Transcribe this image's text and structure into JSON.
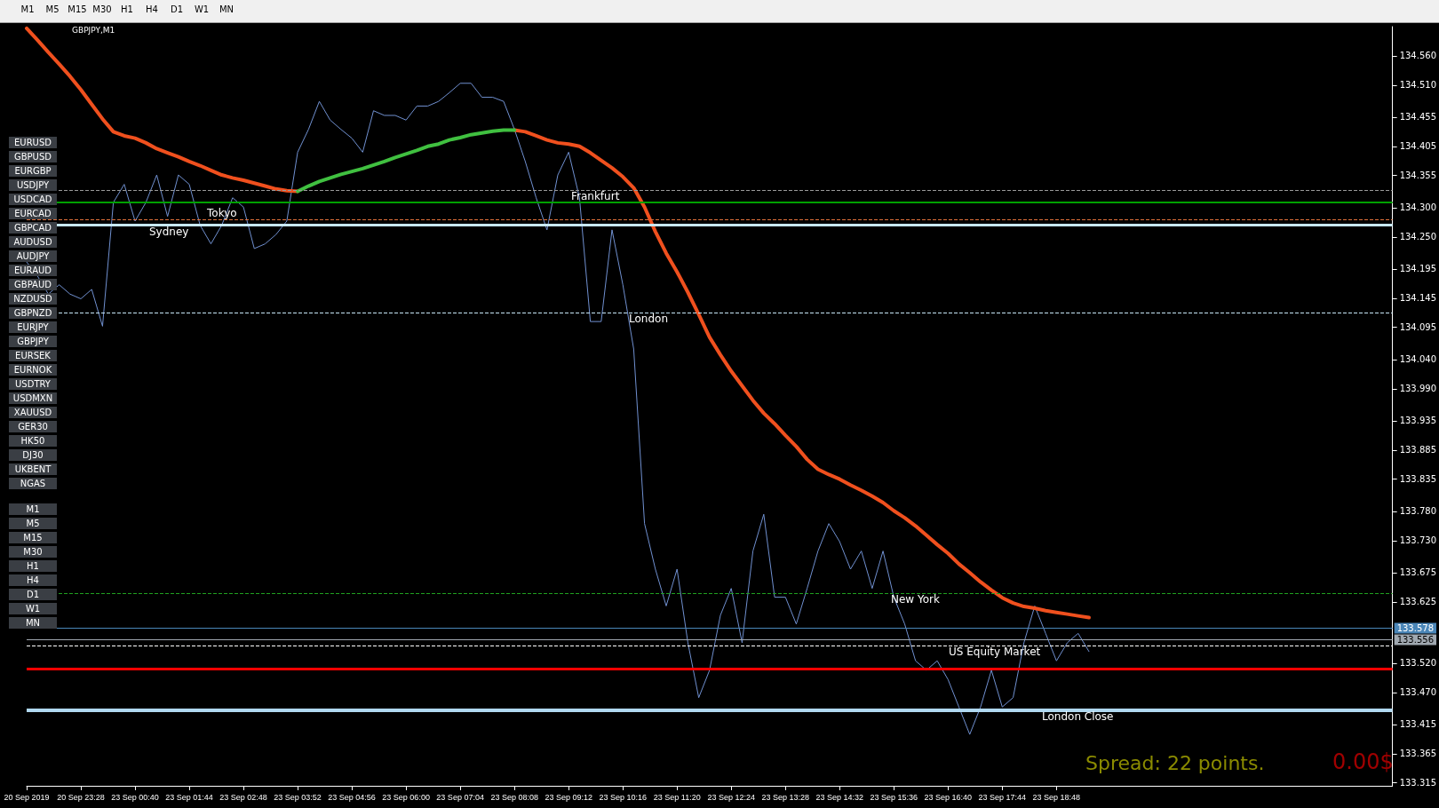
{
  "chart_data": [
    {
      "type": "other",
      "annotations": [
        "M1",
        "M5",
        "M15",
        "M30",
        "H1",
        "H4",
        "D1",
        "W1",
        "MN"
      ]
    },
    {
      "type": "other",
      "annotations": [
        "EURUSD",
        "GBPUSD",
        "EURGBP",
        "USDJPY",
        "USDCAD",
        "EURCAD",
        "GBPCAD",
        "AUDUSD",
        "AUDJPY",
        "EURAUD",
        "GBPAUD",
        "NZDUSD",
        "GBPNZD",
        "EURJPY",
        "GBPJPY",
        "EURSEK",
        "EURNOK",
        "USDTRY",
        "USDMXN",
        "XAUUSD",
        "GER30",
        "HK50",
        "DJ30",
        "UKBENT",
        "NGAS"
      ]
    },
    {
      "type": "other",
      "annotations": [
        "M1",
        "M5",
        "M15",
        "M30",
        "H1",
        "H4",
        "D1",
        "W1",
        "MN"
      ]
    },
    {
      "type": "line",
      "title": "GBPJPY,M1",
      "categories": [
        "20 Sep 2019",
        null,
        null,
        null,
        null,
        "20 Sep 23:28",
        null,
        null,
        null,
        null,
        "23 Sep 00:40",
        null,
        null,
        null,
        null,
        "23 Sep 01:44",
        null,
        null,
        null,
        null,
        "23 Sep 02:48",
        null,
        null,
        null,
        null,
        "23 Sep 03:52",
        null,
        null,
        null,
        null,
        "23 Sep 04:56",
        null,
        null,
        null,
        null,
        "23 Sep 06:00",
        null,
        null,
        null,
        null,
        "23 Sep 07:04",
        null,
        null,
        null,
        null,
        "23 Sep 08:08",
        null,
        null,
        null,
        null,
        "23 Sep 09:12",
        null,
        null,
        null,
        null,
        "23 Sep 10:16",
        null,
        null,
        null,
        null,
        "23 Sep 11:20",
        null,
        null,
        null,
        null,
        "23 Sep 12:24",
        null,
        null,
        null,
        null,
        "23 Sep 13:28",
        null,
        null,
        null,
        null,
        "23 Sep 14:32",
        null,
        null,
        null,
        null,
        "23 Sep 15:36",
        null,
        null,
        null,
        null,
        "23 Sep 16:40",
        null,
        null,
        null,
        null,
        "23 Sep 17:44",
        null,
        null,
        null,
        null,
        "23 Sep 18:48",
        null,
        null,
        null,
        null,
        null,
        null,
        null,
        null,
        null,
        null,
        null,
        null,
        null,
        null,
        null,
        null,
        null,
        null,
        null,
        null,
        null,
        null,
        null,
        null,
        null,
        null,
        null,
        null,
        null,
        null,
        null
      ],
      "series": [
        {
          "color": "#7090d0",
          "values": [
            134.207,
            134.183,
            134.152,
            134.168,
            134.152,
            134.144,
            134.16,
            134.097,
            134.309,
            134.34,
            134.277,
            134.309,
            134.356,
            134.285,
            134.356,
            134.34,
            134.27,
            134.238,
            134.27,
            134.317,
            134.301,
            134.23,
            134.238,
            134.254,
            134.277,
            134.395,
            134.434,
            134.482,
            134.45,
            134.434,
            134.419,
            134.395,
            134.466,
            134.458,
            134.458,
            134.45,
            134.474,
            134.474,
            134.482,
            134.497,
            134.513,
            134.513,
            134.489,
            134.489,
            134.482,
            134.434,
            134.379,
            134.317,
            134.262,
            134.356,
            134.395,
            134.317,
            134.105,
            134.105,
            134.262,
            134.168,
            134.058,
            133.759,
            133.681,
            133.618,
            133.681,
            133.555,
            133.461,
            133.508,
            133.602,
            133.648,
            133.555,
            133.712,
            133.775,
            133.633,
            133.633,
            133.587,
            133.648,
            133.712,
            133.759,
            133.728,
            133.681,
            133.712,
            133.648,
            133.712,
            133.633,
            133.587,
            133.524,
            133.508,
            133.524,
            133.492,
            133.445,
            133.398,
            133.445,
            133.508,
            133.445,
            133.461,
            133.555,
            133.618,
            133.571,
            133.524,
            133.555,
            133.571,
            133.54,
            null,
            null,
            null,
            null,
            null,
            null,
            null,
            null,
            null,
            null,
            null,
            null,
            null,
            null,
            null,
            null,
            null,
            null,
            null,
            null,
            null,
            null,
            null,
            null,
            null,
            null,
            null,
            null
          ]
        },
        {
          "color": "#f0501e",
          "values": [
            134.607,
            134.587,
            134.566,
            134.546,
            134.525,
            134.502,
            134.477,
            134.452,
            134.43,
            134.423,
            134.419,
            134.411,
            134.401,
            134.394,
            134.387,
            134.379,
            134.372,
            134.364,
            134.356,
            134.351,
            134.347,
            134.342,
            134.337,
            134.332,
            134.329,
            134.328,
            null,
            null,
            null,
            null,
            null,
            null,
            null,
            null,
            null,
            null,
            null,
            null,
            null,
            null,
            null,
            null,
            null,
            null,
            null,
            134.433,
            134.43,
            134.423,
            134.416,
            134.411,
            134.409,
            134.405,
            134.394,
            134.381,
            134.368,
            134.353,
            134.334,
            134.301,
            134.259,
            134.222,
            134.19,
            134.155,
            134.117,
            134.078,
            134.048,
            134.02,
            133.995,
            133.97,
            133.948,
            133.93,
            133.91,
            133.891,
            133.869,
            133.852,
            133.843,
            133.835,
            133.825,
            133.816,
            133.806,
            133.795,
            133.781,
            133.769,
            133.755,
            133.739,
            133.723,
            133.708,
            133.69,
            133.675,
            133.659,
            133.645,
            133.632,
            133.623,
            133.617,
            133.614,
            133.61,
            133.607,
            133.604,
            133.601,
            133.598,
            null,
            null,
            null,
            null,
            null,
            null,
            null,
            null,
            null,
            null,
            null,
            null,
            null,
            null,
            null,
            null,
            null,
            null,
            null,
            null,
            null,
            null,
            null,
            null,
            null,
            null,
            null,
            null
          ]
        },
        {
          "color": "#40c040",
          "values": [
            null,
            null,
            null,
            null,
            null,
            null,
            null,
            null,
            null,
            null,
            null,
            null,
            null,
            null,
            null,
            null,
            null,
            null,
            null,
            null,
            null,
            null,
            null,
            null,
            null,
            134.328,
            134.337,
            134.345,
            134.351,
            134.357,
            134.362,
            134.367,
            134.373,
            134.379,
            134.386,
            134.392,
            134.398,
            134.405,
            134.409,
            134.416,
            134.42,
            134.425,
            134.428,
            134.431,
            134.433,
            134.433,
            null,
            null,
            null,
            null,
            null,
            null,
            null,
            null,
            null,
            null,
            null,
            null,
            null,
            null,
            null,
            null,
            null,
            null,
            null,
            null,
            null,
            null,
            null,
            null,
            null,
            null,
            null,
            null,
            null,
            null,
            null,
            null,
            null,
            null,
            null,
            null,
            null,
            null,
            null,
            null,
            null,
            null,
            null,
            null,
            null,
            null,
            null,
            null,
            null,
            null,
            null,
            null,
            null,
            null,
            null,
            null,
            null,
            null,
            null,
            null,
            null,
            null,
            null,
            null,
            null,
            null,
            null,
            null,
            null,
            null,
            null,
            null,
            null,
            null,
            null,
            null,
            null,
            null,
            null,
            null,
            null
          ]
        }
      ],
      "ylim": [
        133.31,
        134.61
      ],
      "yticks": [
        {
          "value": 134.56,
          "label": "134.560"
        },
        {
          "value": 134.51,
          "label": "134.510"
        },
        {
          "value": 134.455,
          "label": "134.455"
        },
        {
          "value": 134.405,
          "label": "134.405"
        },
        {
          "value": 134.355,
          "label": "134.355"
        },
        {
          "value": 134.3,
          "label": "134.300"
        },
        {
          "value": 134.25,
          "label": "134.250"
        },
        {
          "value": 134.195,
          "label": "134.195"
        },
        {
          "value": 134.145,
          "label": "134.145"
        },
        {
          "value": 134.095,
          "label": "134.095"
        },
        {
          "value": 134.04,
          "label": "134.040"
        },
        {
          "value": 133.99,
          "label": "133.990"
        },
        {
          "value": 133.935,
          "label": "133.935"
        },
        {
          "value": 133.885,
          "label": "133.885"
        },
        {
          "value": 133.835,
          "label": "133.835"
        },
        {
          "value": 133.78,
          "label": "133.780"
        },
        {
          "value": 133.73,
          "label": "133.730"
        },
        {
          "value": 133.675,
          "label": "133.675"
        },
        {
          "value": 133.625,
          "label": "133.625"
        },
        {
          "value": 133.52,
          "label": "133.520"
        },
        {
          "value": 133.47,
          "label": "133.470"
        },
        {
          "value": 133.415,
          "label": "133.415"
        },
        {
          "value": 133.365,
          "label": "133.365"
        },
        {
          "value": 133.315,
          "label": "133.315"
        }
      ],
      "ref_lines": [
        {
          "axis": "y",
          "value": 134.309,
          "color": "#00a000",
          "line_style": "solid"
        },
        {
          "axis": "y",
          "value": 134.329,
          "label": "Frankfurt",
          "color": "#9a9a9a",
          "line_style": "dashed"
        },
        {
          "axis": "y",
          "value": 134.277,
          "label": "Tokyo",
          "color": "#e0703a",
          "line_style": "dashed"
        },
        {
          "axis": "y",
          "value": 134.266,
          "label": "Sydney",
          "color": "#c8e8f8",
          "line_style": "solid"
        },
        {
          "axis": "y",
          "value": 134.119,
          "label": "London",
          "color": "#c8e8f8",
          "line_style": "dashed"
        },
        {
          "axis": "y",
          "value": 133.642,
          "label": "New York",
          "color": "#20a020",
          "line_style": "dashed"
        },
        {
          "axis": "y",
          "value": 133.554,
          "label": "US Equity Market",
          "color": "#ffffff",
          "line_style": "dashed"
        },
        {
          "axis": "y",
          "value": 133.513,
          "color": "#ff0000",
          "line_style": "solid"
        },
        {
          "axis": "y",
          "value": 133.444,
          "label": "London Close",
          "color": "#b0d8f0",
          "line_style": "solid"
        },
        {
          "axis": "y",
          "value": 133.578,
          "label": "133.578",
          "color": "#4a86b8",
          "line_style": "solid"
        },
        {
          "axis": "y",
          "value": 133.556,
          "label": "133.556",
          "color": "#a0a8b0",
          "line_style": "solid"
        }
      ],
      "annotations": [
        "Spread: 22 points.",
        "0.00$"
      ],
      "grid": false,
      "marker": "none",
      "line_style": "solid"
    }
  ]
}
